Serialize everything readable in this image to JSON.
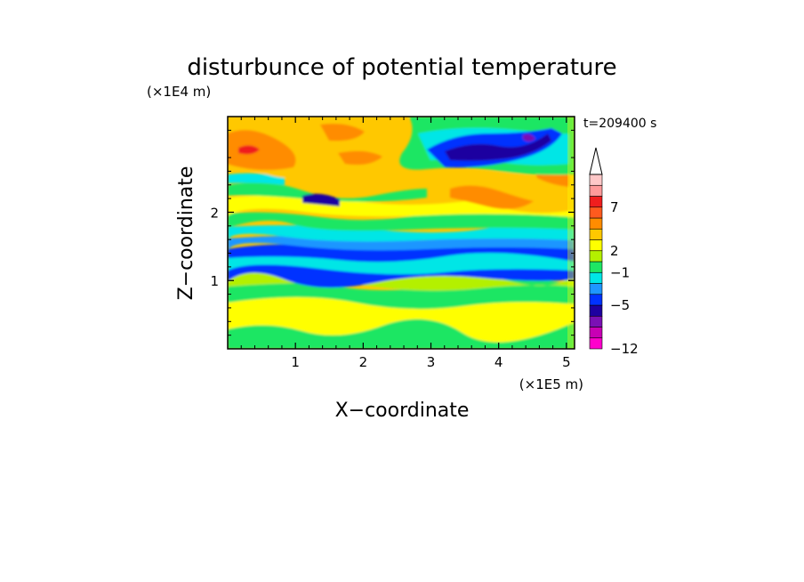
{
  "chart_data": {
    "type": "heatmap",
    "title": "disturbunce of potential temperature",
    "xlabel": "X−coordinate",
    "ylabel": "Z−coordinate",
    "x_unit": "(×1E5 m)",
    "y_unit": "(×1E4 m)",
    "time_label": "t=209400 s",
    "xlim": [
      0,
      5.12
    ],
    "ylim": [
      0,
      3.4
    ],
    "x_ticks": [
      {
        "v": 1,
        "label": "1"
      },
      {
        "v": 2,
        "label": "2"
      },
      {
        "v": 3,
        "label": "3"
      },
      {
        "v": 4,
        "label": "4"
      },
      {
        "v": 5,
        "label": "5"
      }
    ],
    "y_ticks": [
      {
        "v": 1,
        "label": "1"
      },
      {
        "v": 2,
        "label": "2"
      }
    ],
    "colorbar": {
      "colors": [
        "#ff00cc",
        "#c800b4",
        "#7a10b4",
        "#1e00a0",
        "#0032ff",
        "#1e96ff",
        "#00e6e6",
        "#1ee664",
        "#b4f000",
        "#ffff00",
        "#ffc800",
        "#ff8c00",
        "#ff5a1e",
        "#f01e1e",
        "#ff9a9a",
        "#ffc8c8",
        "#ffffff"
      ],
      "tick_labels": [
        {
          "index": 0,
          "label": "−12"
        },
        {
          "index": 4,
          "label": "−5"
        },
        {
          "index": 7,
          "label": "−1"
        },
        {
          "index": 9,
          "label": "2"
        },
        {
          "index": 13,
          "label": "7"
        }
      ]
    },
    "field_bands": [
      {
        "z": [
          0.0,
          0.35
        ],
        "level": "yellow/green mix"
      },
      {
        "z": [
          0.35,
          0.6
        ],
        "level": "yellow"
      },
      {
        "z": [
          0.6,
          0.8
        ],
        "level": "green"
      },
      {
        "z": [
          0.8,
          1.35
        ],
        "level": "blue/cyan"
      },
      {
        "z": [
          1.35,
          2.0
        ],
        "level": "yellow/green"
      },
      {
        "z": [
          2.0,
          3.4
        ],
        "level": "orange/yellow with negative patch near x=3.5-4.5"
      }
    ]
  }
}
